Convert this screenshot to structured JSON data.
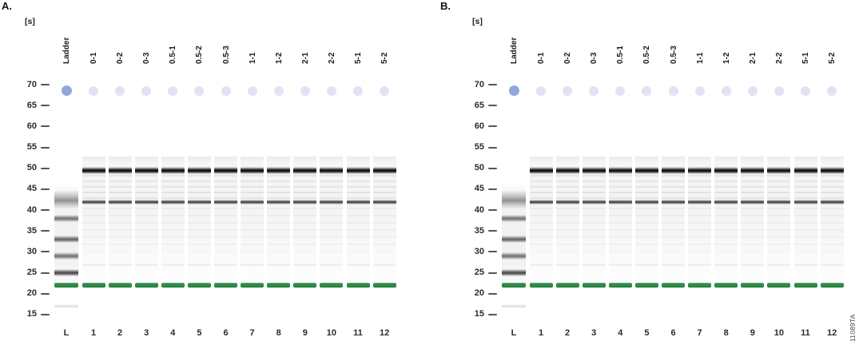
{
  "figure": {
    "side_label": "11089TA"
  },
  "chart_data": {
    "type": "gel-electrophoresis-virtual-gel",
    "y_axis": {
      "unit_label": "[s]",
      "unit": "seconds",
      "ticks_s": [
        70,
        65,
        60,
        55,
        50,
        45,
        40,
        35,
        30,
        25,
        20,
        15
      ]
    },
    "panels": [
      {
        "letter": "A."
      },
      {
        "letter": "B."
      }
    ],
    "panels_note": "Panels A and B show identical lane sets and band patterns",
    "upper_marker_s": 68.5,
    "lower_marker_s": 22,
    "lanes": [
      {
        "label": "Ladder",
        "footer": "L",
        "type": "ladder",
        "upper_marker_s": 68.5,
        "bands": [
          {
            "s": 42.5,
            "kind": "smear",
            "intensity": 0.45
          },
          {
            "s": 38,
            "kind": "band",
            "intensity": 0.5
          },
          {
            "s": 33,
            "kind": "band",
            "intensity": 0.56
          },
          {
            "s": 29,
            "kind": "band",
            "intensity": 0.5
          },
          {
            "s": 25,
            "kind": "band",
            "intensity": 0.68
          },
          {
            "s": 22,
            "kind": "lower-marker"
          },
          {
            "s": 17,
            "kind": "faint",
            "intensity": 0.12
          }
        ]
      },
      {
        "label": "0-1",
        "footer": "1",
        "type": "sample",
        "upper_marker_s": 68.5,
        "bands": [
          {
            "s": 49.5,
            "kind": "strong",
            "intensity": 0.95
          },
          {
            "s": 42,
            "kind": "medium",
            "intensity": 0.72
          },
          {
            "s": 22,
            "kind": "lower-marker"
          }
        ]
      },
      {
        "label": "0-2",
        "footer": "2",
        "type": "sample",
        "upper_marker_s": 68.5,
        "bands": [
          {
            "s": 49.5,
            "kind": "strong",
            "intensity": 0.95
          },
          {
            "s": 42,
            "kind": "medium",
            "intensity": 0.72
          },
          {
            "s": 22,
            "kind": "lower-marker"
          }
        ]
      },
      {
        "label": "0-3",
        "footer": "3",
        "type": "sample",
        "upper_marker_s": 68.5,
        "bands": [
          {
            "s": 49.5,
            "kind": "strong",
            "intensity": 0.95
          },
          {
            "s": 42,
            "kind": "medium",
            "intensity": 0.72
          },
          {
            "s": 22,
            "kind": "lower-marker"
          }
        ]
      },
      {
        "label": "0.5-1",
        "footer": "4",
        "type": "sample",
        "upper_marker_s": 68.5,
        "bands": [
          {
            "s": 49.5,
            "kind": "strong",
            "intensity": 0.95
          },
          {
            "s": 42,
            "kind": "medium",
            "intensity": 0.72
          },
          {
            "s": 22,
            "kind": "lower-marker"
          }
        ]
      },
      {
        "label": "0.5-2",
        "footer": "5",
        "type": "sample",
        "upper_marker_s": 68.5,
        "bands": [
          {
            "s": 49.5,
            "kind": "strong",
            "intensity": 0.95
          },
          {
            "s": 42,
            "kind": "medium",
            "intensity": 0.72
          },
          {
            "s": 22,
            "kind": "lower-marker"
          }
        ]
      },
      {
        "label": "0.5-3",
        "footer": "6",
        "type": "sample",
        "upper_marker_s": 68.5,
        "bands": [
          {
            "s": 49.5,
            "kind": "strong",
            "intensity": 0.95
          },
          {
            "s": 42,
            "kind": "medium",
            "intensity": 0.72
          },
          {
            "s": 22,
            "kind": "lower-marker"
          }
        ]
      },
      {
        "label": "1-1",
        "footer": "7",
        "type": "sample",
        "upper_marker_s": 68.5,
        "bands": [
          {
            "s": 49.5,
            "kind": "strong",
            "intensity": 0.95
          },
          {
            "s": 42,
            "kind": "medium",
            "intensity": 0.72
          },
          {
            "s": 22,
            "kind": "lower-marker"
          }
        ]
      },
      {
        "label": "1-2",
        "footer": "8",
        "type": "sample",
        "upper_marker_s": 68.5,
        "bands": [
          {
            "s": 49.5,
            "kind": "strong",
            "intensity": 0.95
          },
          {
            "s": 42,
            "kind": "medium",
            "intensity": 0.72
          },
          {
            "s": 22,
            "kind": "lower-marker"
          }
        ]
      },
      {
        "label": "2-1",
        "footer": "9",
        "type": "sample",
        "upper_marker_s": 68.5,
        "bands": [
          {
            "s": 49.5,
            "kind": "strong",
            "intensity": 0.95
          },
          {
            "s": 42,
            "kind": "medium",
            "intensity": 0.72
          },
          {
            "s": 22,
            "kind": "lower-marker"
          }
        ]
      },
      {
        "label": "2-2",
        "footer": "10",
        "type": "sample",
        "upper_marker_s": 68.5,
        "bands": [
          {
            "s": 49.5,
            "kind": "strong",
            "intensity": 0.95
          },
          {
            "s": 42,
            "kind": "medium",
            "intensity": 0.72
          },
          {
            "s": 22,
            "kind": "lower-marker"
          }
        ]
      },
      {
        "label": "5-1",
        "footer": "11",
        "type": "sample",
        "upper_marker_s": 68.5,
        "bands": [
          {
            "s": 49.5,
            "kind": "strong",
            "intensity": 0.95
          },
          {
            "s": 42,
            "kind": "medium",
            "intensity": 0.72
          },
          {
            "s": 22,
            "kind": "lower-marker"
          }
        ]
      },
      {
        "label": "5-2",
        "footer": "12",
        "type": "sample",
        "upper_marker_s": 68.5,
        "bands": [
          {
            "s": 49.5,
            "kind": "strong",
            "intensity": 0.95
          },
          {
            "s": 42,
            "kind": "medium",
            "intensity": 0.72
          },
          {
            "s": 22,
            "kind": "lower-marker"
          }
        ]
      }
    ]
  },
  "colors": {
    "upper_marker_ladder": "#8fa8da",
    "upper_marker_sample": "#e1e3f4",
    "lower_marker_green": "#2e8c46",
    "band_dark": "#1a1a1a",
    "ladder_gray": "#7c7c7c",
    "text_dark": "#272b33",
    "background": "#ffffff"
  }
}
